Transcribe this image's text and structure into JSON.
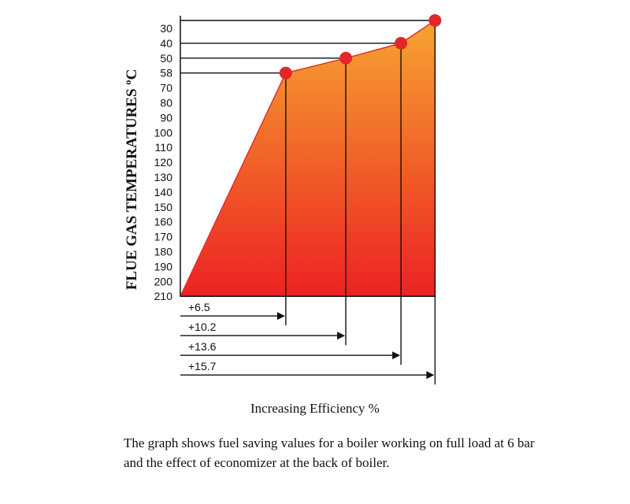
{
  "chart_data": {
    "type": "area",
    "ylabel": "FLUE GAS TEMPERATURES ºC",
    "xlabel": "Increasing Efficiency %",
    "y_ticks": [
      "30",
      "40",
      "50",
      "58",
      "70",
      "80",
      "90",
      "100",
      "110",
      "120",
      "130",
      "140",
      "150",
      "160",
      "170",
      "180",
      "190",
      "200",
      "210"
    ],
    "y_inverted": true,
    "ylim": [
      30,
      210
    ],
    "points": [
      {
        "efficiency_gain": 0,
        "temperature": 210
      },
      {
        "efficiency_gain": 6.5,
        "temperature": 58
      },
      {
        "efficiency_gain": 10.2,
        "temperature": 50
      },
      {
        "efficiency_gain": 13.6,
        "temperature": 40
      },
      {
        "efficiency_gain": 15.7,
        "temperature": 30
      }
    ],
    "gain_labels": [
      "+6.5",
      "+10.2",
      "+13.6",
      "+15.7"
    ],
    "fill_gradient": [
      "#f6a431",
      "#ec2222"
    ],
    "line_color": "#e03030",
    "marker_color": "#e0282b"
  },
  "caption": "The graph shows fuel saving values for a boiler working on full load at 6 bar and the effect of economizer at the back of boiler."
}
